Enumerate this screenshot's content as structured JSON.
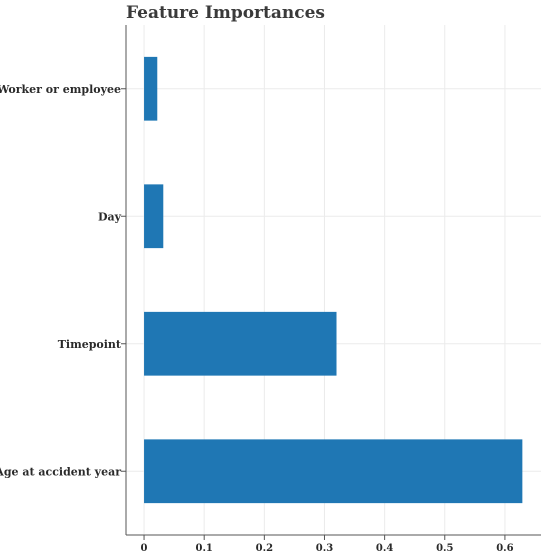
{
  "chart_data": {
    "type": "bar",
    "orientation": "horizontal",
    "title": "Feature Importances",
    "xlabel": "",
    "ylabel": "",
    "categories": [
      "Worker or employee",
      "Day",
      "Timepoint",
      "Age at accident year"
    ],
    "values": [
      0.022,
      0.032,
      0.32,
      0.629
    ],
    "xlim": [
      -0.03,
      0.66
    ],
    "xticks": [
      0,
      0.1,
      0.2,
      0.3,
      0.4,
      0.5,
      0.6
    ],
    "xtick_labels": [
      "0",
      "0.1",
      "0.2",
      "0.3",
      "0.4",
      "0.5",
      "0.6"
    ],
    "grid": true,
    "legend": "none",
    "bar_color": "#1f77b4",
    "grid_color": "#ebebeb",
    "axis_color": "#555555"
  }
}
